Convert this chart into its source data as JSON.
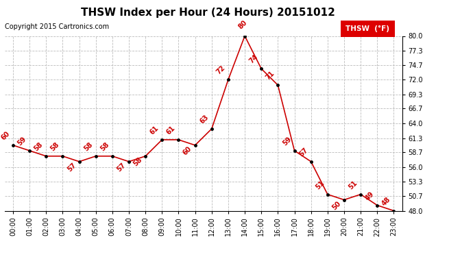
{
  "title": "THSW Index per Hour (24 Hours) 20151012",
  "copyright": "Copyright 2015 Cartronics.com",
  "legend_label": "THSW  (°F)",
  "hours": [
    0,
    1,
    2,
    3,
    4,
    5,
    6,
    7,
    8,
    9,
    10,
    11,
    12,
    13,
    14,
    15,
    16,
    17,
    18,
    19,
    20,
    21,
    22,
    23
  ],
  "values": [
    60,
    59,
    58,
    58,
    57,
    58,
    58,
    57,
    58,
    61,
    61,
    60,
    63,
    72,
    80,
    74,
    71,
    59,
    57,
    51,
    50,
    51,
    49,
    48
  ],
  "ylim_min": 48.0,
  "ylim_max": 80.0,
  "yticks": [
    48.0,
    50.7,
    53.3,
    56.0,
    58.7,
    61.3,
    64.0,
    66.7,
    69.3,
    72.0,
    74.7,
    77.3,
    80.0
  ],
  "line_color": "#cc0000",
  "marker_color": "#000000",
  "label_color": "#cc0000",
  "bg_color": "#ffffff",
  "grid_color": "#bbbbbb",
  "title_fontsize": 11,
  "tick_fontsize": 7,
  "label_fontsize": 7,
  "copyright_fontsize": 7
}
